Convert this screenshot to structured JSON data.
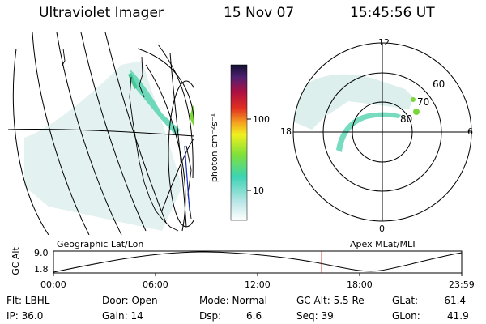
{
  "header": {
    "instrument": "Ultraviolet Imager",
    "date": "15 Nov 07",
    "time": "15:45:56 UT"
  },
  "colorbar": {
    "unit_label": "photon cm⁻²s⁻¹",
    "ticks": [
      "100",
      "10"
    ]
  },
  "left_panel": {
    "label": "Geographic Lat/Lon"
  },
  "right_panel": {
    "label": "Apex  MLat/MLT",
    "lat_labels": [
      "60",
      "70",
      "80"
    ],
    "mlt_labels": [
      "12",
      "18",
      "6",
      "0"
    ]
  },
  "altitude_plot": {
    "ylabel": "GC Alt",
    "yticks": [
      "9.0",
      "1.8"
    ],
    "xticks": [
      "00:00",
      "06:00",
      "12:00",
      "18:00",
      "23:59"
    ],
    "current_time_fraction": 0.657,
    "current_time_color": "#c00000"
  },
  "info": {
    "flt": "Flt: LBHL",
    "ip": "IP: 36.0",
    "door": "Door: Open",
    "gain": "Gain: 14",
    "mode": "Mode: Normal",
    "dsp_label": "Dsp:",
    "dsp_value": "6.6",
    "gc_alt": "GC Alt: 5.5 Re",
    "seq": "Seq: 39",
    "glat_label": "GLat:",
    "glat_value": "-61.4",
    "glon_label": "GLon:",
    "glon_value": "41.9"
  },
  "colors": {
    "aurora_faint": "#c8e4e0",
    "aurora_mid": "#5fd6b4",
    "aurora_bright": "#7cd63a",
    "grid": "#000000"
  }
}
